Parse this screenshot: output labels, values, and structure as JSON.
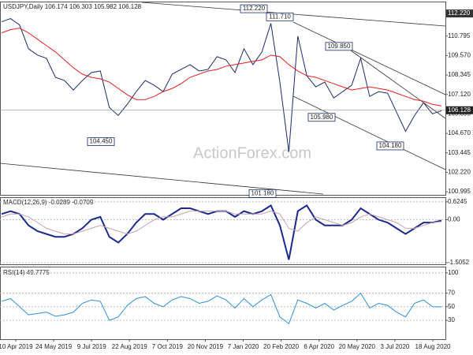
{
  "chart_data": [
    {
      "type": "price",
      "header": "USDJPY,Daily  106.174 106.303 105.982 106.128",
      "watermark": "ActionForex.com",
      "date_labels": [
        "10 Apr 2019",
        "24 May 2019",
        "9 Jul 2019",
        "22 Aug 2019",
        "7 Oct 2019",
        "20 Nov 2019",
        "7 Jan 2020",
        "20 Feb 2020",
        "6 Apr 2020",
        "20 May 2020",
        "3 Jul 2020",
        "18 Aug 2020"
      ],
      "series": [
        {
          "name": "USDJPY",
          "color": "#1b2a6b",
          "values": [
            111.7,
            111.9,
            111.5,
            110.0,
            109.6,
            109.4,
            108.2,
            108.0,
            107.4,
            108.0,
            108.5,
            108.6,
            106.3,
            105.8,
            106.5,
            107.3,
            108.0,
            107.7,
            107.3,
            108.4,
            108.7,
            109.0,
            108.6,
            108.7,
            109.5,
            109.3,
            108.5,
            110.0,
            109.0,
            109.8,
            111.6,
            107.9,
            103.5,
            110.8,
            108.3,
            107.6,
            107.9,
            106.9,
            107.3,
            107.7,
            109.4,
            107.0,
            107.3,
            107.2,
            106.0,
            104.8,
            105.8,
            106.6,
            105.9,
            106.1
          ]
        },
        {
          "name": "MA",
          "color": "#e02020",
          "values": [
            111.0,
            111.2,
            111.3,
            111.0,
            110.6,
            110.2,
            109.8,
            109.3,
            108.8,
            108.4,
            108.2,
            108.1,
            107.9,
            107.5,
            107.1,
            106.8,
            106.8,
            107.0,
            107.3,
            107.5,
            107.8,
            108.2,
            108.4,
            108.6,
            108.7,
            108.9,
            109.0,
            109.1,
            109.2,
            109.3,
            109.6,
            109.5,
            109.0,
            108.6,
            108.3,
            108.2,
            108.0,
            107.8,
            107.6,
            107.4,
            107.5,
            107.6,
            107.5,
            107.4,
            107.2,
            107.0,
            106.8,
            106.7,
            106.5,
            106.4
          ]
        }
      ],
      "annotations": [
        {
          "value": 112.22,
          "label": "112.220"
        },
        {
          "value": 111.71,
          "label": "111.710"
        },
        {
          "value": 109.85,
          "label": "109.850"
        },
        {
          "value": 105.98,
          "label": "105.980"
        },
        {
          "value": 104.45,
          "label": "104.450"
        },
        {
          "value": 104.18,
          "label": "104.180"
        },
        {
          "value": 101.18,
          "label": "101.180"
        }
      ],
      "level": {
        "value": 112.22,
        "label": "112.220"
      },
      "current": {
        "value": 106.128,
        "label": "106.128"
      },
      "ylim": [
        100.8,
        112.92
      ],
      "yticks": [
        100.995,
        {
          "value": 102.22,
          "label": "102.220"
        },
        103.445,
        {
          "value": 104.67,
          "label": "104.670"
        },
        105.895,
        {
          "value": 107.12,
          "label": "107.120"
        },
        108.345,
        {
          "value": 109.57,
          "label": "109.570"
        },
        110.795
      ]
    },
    {
      "type": "macd",
      "header": "MACD(12,26,9) -0.0289 -0.0709",
      "series": [
        {
          "name": "MACD",
          "color": "#1b2a8c",
          "values": [
            0.2,
            0.3,
            0.2,
            -0.2,
            -0.4,
            -0.5,
            -0.6,
            -0.6,
            -0.5,
            -0.3,
            0.0,
            0.1,
            -0.6,
            -0.8,
            -0.5,
            -0.1,
            0.2,
            0.2,
            0.0,
            0.2,
            0.4,
            0.4,
            0.3,
            0.2,
            0.3,
            0.3,
            0.1,
            0.3,
            0.2,
            0.3,
            0.5,
            -0.2,
            -1.4,
            0.3,
            0.5,
            0.0,
            -0.2,
            -0.2,
            -0.2,
            0.0,
            0.4,
            0.2,
            0.0,
            -0.1,
            -0.3,
            -0.5,
            -0.3,
            -0.1,
            -0.1,
            -0.03
          ]
        },
        {
          "name": "Signal",
          "color": "#c8a0b0",
          "values": [
            0.1,
            0.2,
            0.2,
            0.1,
            -0.1,
            -0.3,
            -0.4,
            -0.5,
            -0.5,
            -0.4,
            -0.3,
            -0.2,
            -0.3,
            -0.4,
            -0.5,
            -0.4,
            -0.2,
            0.0,
            0.1,
            0.1,
            0.2,
            0.3,
            0.3,
            0.3,
            0.3,
            0.3,
            0.2,
            0.2,
            0.2,
            0.2,
            0.3,
            0.2,
            -0.3,
            -0.4,
            -0.1,
            0.1,
            0.0,
            -0.1,
            -0.2,
            -0.1,
            0.1,
            0.2,
            0.1,
            0.0,
            -0.1,
            -0.3,
            -0.3,
            -0.2,
            -0.1,
            -0.07
          ]
        }
      ],
      "ylim": [
        -1.56,
        0.76
      ],
      "yticks": [
        0.6245,
        {
          "value": 0,
          "label": "0.00"
        },
        -1.5052
      ]
    },
    {
      "type": "rsi",
      "header": "RSI(14) 49.7775",
      "series": [
        {
          "name": "RSI",
          "color": "#2f8fd8",
          "values": [
            58,
            62,
            50,
            38,
            40,
            42,
            36,
            38,
            42,
            55,
            60,
            58,
            30,
            35,
            52,
            62,
            65,
            55,
            50,
            60,
            65,
            62,
            55,
            58,
            66,
            60,
            48,
            62,
            50,
            60,
            68,
            35,
            25,
            60,
            55,
            48,
            55,
            45,
            52,
            58,
            70,
            48,
            55,
            52,
            42,
            35,
            55,
            60,
            50,
            49.78
          ]
        }
      ],
      "ylim": [
        2,
        108
      ],
      "yticks": [
        100,
        70,
        50,
        30
      ]
    }
  ]
}
